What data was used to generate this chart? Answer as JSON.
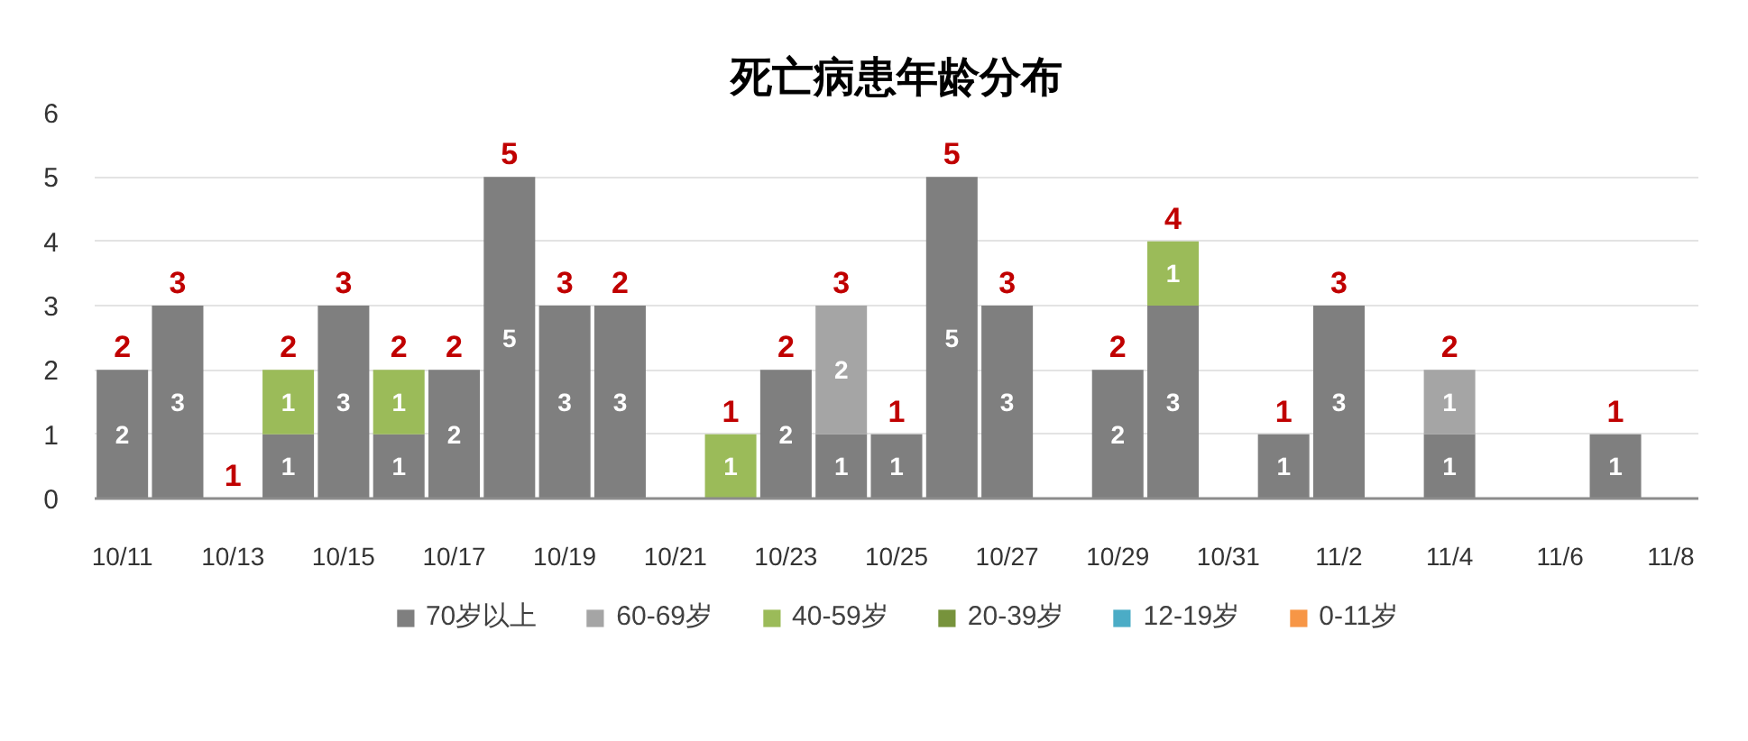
{
  "chart_data": {
    "type": "bar",
    "title": "死亡病患年龄分布",
    "categories": [
      "10/11",
      null,
      "10/13",
      null,
      "10/15",
      null,
      "10/17",
      null,
      "10/19",
      null,
      "10/21",
      null,
      "10/23",
      null,
      "10/25",
      null,
      "10/27",
      null,
      "10/29",
      null,
      "10/31",
      null,
      "11/2",
      null,
      "11/4",
      null,
      "11/6",
      null,
      "11/8"
    ],
    "series": [
      {
        "name": "70岁以上",
        "color": "#7f7f7f",
        "values": [
          2,
          3,
          null,
          1,
          3,
          1,
          2,
          5,
          3,
          3,
          null,
          null,
          2,
          1,
          1,
          5,
          3,
          null,
          2,
          3,
          null,
          1,
          3,
          null,
          1,
          null,
          null,
          1,
          null
        ]
      },
      {
        "name": "60-69岁",
        "color": "#a5a5a5",
        "values": [
          null,
          null,
          null,
          null,
          null,
          null,
          null,
          null,
          null,
          null,
          null,
          null,
          null,
          2,
          null,
          null,
          null,
          null,
          null,
          null,
          null,
          null,
          null,
          null,
          1,
          null,
          null,
          null,
          null
        ]
      },
      {
        "name": "40-59岁",
        "color": "#9bbb59",
        "values": [
          null,
          null,
          null,
          1,
          null,
          1,
          null,
          null,
          null,
          null,
          null,
          1,
          null,
          null,
          null,
          null,
          null,
          null,
          null,
          1,
          null,
          null,
          null,
          null,
          null,
          null,
          null,
          null,
          null
        ]
      },
      {
        "name": "20-39岁",
        "color": "#77933c",
        "values": [
          null,
          null,
          null,
          null,
          null,
          null,
          null,
          null,
          null,
          null,
          null,
          null,
          null,
          null,
          null,
          null,
          null,
          null,
          null,
          null,
          null,
          null,
          null,
          null,
          null,
          null,
          null,
          null,
          null
        ]
      },
      {
        "name": "12-19岁",
        "color": "#4bacc6",
        "values": [
          null,
          null,
          null,
          null,
          null,
          null,
          null,
          null,
          null,
          null,
          null,
          null,
          null,
          null,
          null,
          null,
          null,
          null,
          null,
          null,
          null,
          null,
          null,
          null,
          null,
          null,
          null,
          null,
          null
        ]
      },
      {
        "name": "0-11岁",
        "color": "#f79646",
        "values": [
          null,
          null,
          null,
          null,
          null,
          null,
          null,
          null,
          null,
          null,
          null,
          null,
          null,
          null,
          null,
          null,
          null,
          null,
          null,
          null,
          null,
          null,
          null,
          null,
          null,
          null,
          null,
          null,
          null
        ]
      }
    ],
    "stacked": true,
    "totals": [
      "2",
      "3",
      "1",
      "2",
      "3",
      "2",
      "2",
      "5",
      "3",
      "2",
      null,
      "1",
      "2",
      "3",
      "1",
      "5",
      "3",
      null,
      "2",
      "4",
      null,
      "1",
      "3",
      null,
      "2",
      null,
      null,
      "1",
      null
    ],
    "data_labels": true,
    "ylim": [
      0,
      6
    ],
    "yticks": [
      0,
      1,
      2,
      3,
      4,
      5,
      6
    ],
    "grid": "y",
    "legend": "bottom"
  }
}
